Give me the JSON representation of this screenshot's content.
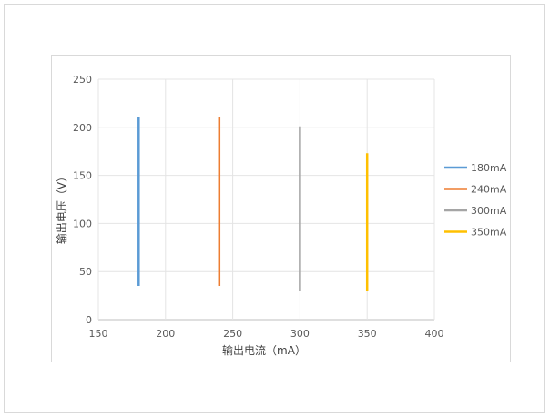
{
  "chart_data": {
    "type": "line",
    "title": "",
    "xlabel": "输出电流（mA）",
    "ylabel": "输出电压（V）",
    "xlim": [
      150,
      400
    ],
    "ylim": [
      0,
      250
    ],
    "xticks": [
      150,
      200,
      250,
      300,
      350,
      400
    ],
    "yticks": [
      0,
      50,
      100,
      150,
      200,
      250
    ],
    "grid": true,
    "legend_position": "right",
    "series": [
      {
        "name": "180mA",
        "color": "#5b9bd5",
        "x": [
          180,
          180
        ],
        "y": [
          35,
          211
        ]
      },
      {
        "name": "240mA",
        "color": "#ed7d31",
        "x": [
          240,
          240
        ],
        "y": [
          35,
          211
        ]
      },
      {
        "name": "300mA",
        "color": "#a5a5a5",
        "x": [
          300,
          300
        ],
        "y": [
          30,
          201
        ]
      },
      {
        "name": "350mA",
        "color": "#ffc000",
        "x": [
          350,
          350
        ],
        "y": [
          30,
          173
        ]
      }
    ]
  }
}
